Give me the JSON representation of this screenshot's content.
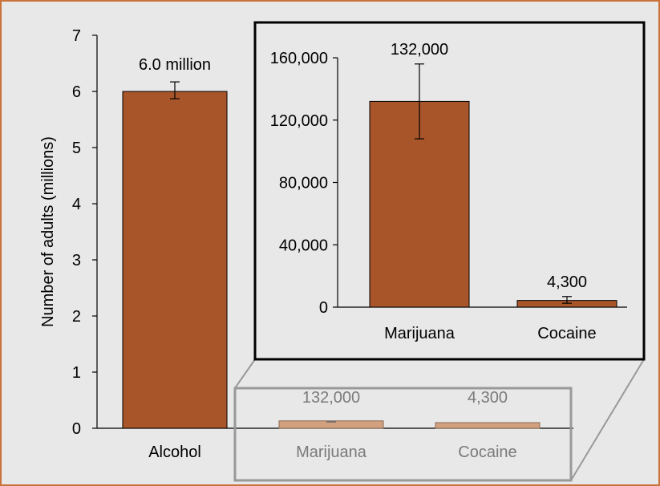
{
  "colors": {
    "bar": "#a9552a",
    "bar_faded": "#d2a07f",
    "frame_border": "#c8733a",
    "background": "#e8e8e8",
    "inset_border": "#000000",
    "callout_border": "#999999"
  },
  "chart_data": [
    {
      "type": "bar",
      "ylabel": "Number of adults (millions)",
      "ylim": [
        0,
        7
      ],
      "yticks": [
        "0",
        "1",
        "2",
        "3",
        "4",
        "5",
        "6",
        "7"
      ],
      "categories": [
        "Alcohol",
        "Marijuana",
        "Cocaine"
      ],
      "values": [
        6.0,
        0.132,
        0.0043
      ],
      "error_low": [
        5.87,
        0.108,
        0.0025
      ],
      "error_high": [
        6.17,
        0.156,
        0.0068
      ],
      "data_labels": [
        "6.0 million",
        "132,000",
        "4,300"
      ]
    },
    {
      "type": "bar",
      "ylim": [
        0,
        160000
      ],
      "yticks": [
        "0",
        "40,000",
        "80,000",
        "120,000",
        "160,000"
      ],
      "categories": [
        "Marijuana",
        "Cocaine"
      ],
      "values": [
        132000,
        4300
      ],
      "error_low": [
        108000,
        2500
      ],
      "error_high": [
        156000,
        6800
      ],
      "data_labels": [
        "132,000",
        "4,300"
      ]
    }
  ]
}
